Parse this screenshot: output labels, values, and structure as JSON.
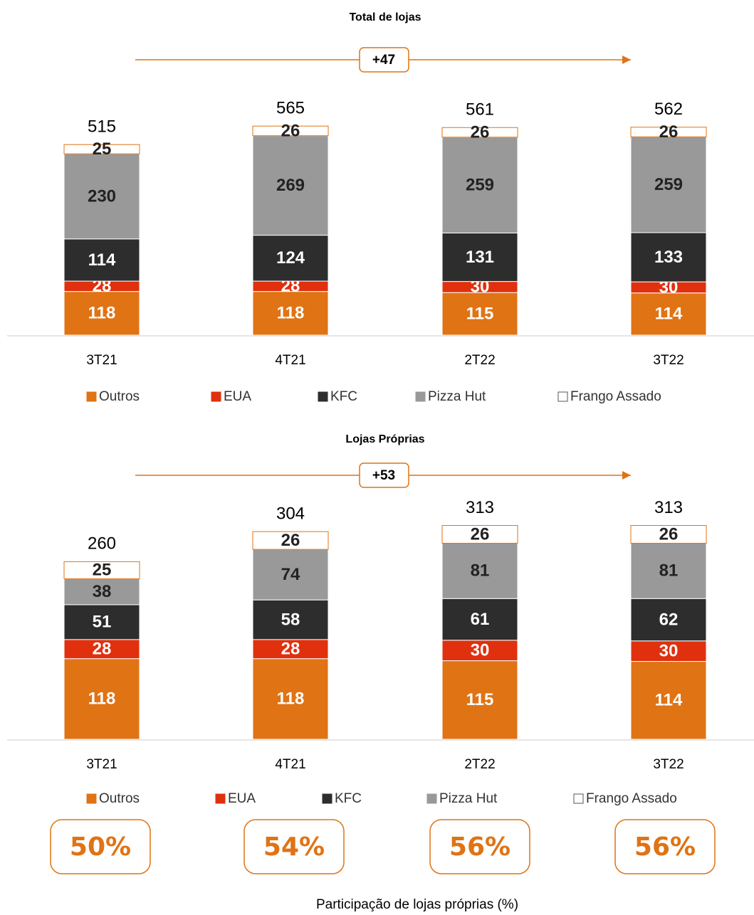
{
  "chart_data": [
    {
      "type": "stacked_bar",
      "title": "Total de lojas",
      "annotation": "+47",
      "categories": [
        "3T21",
        "4T21",
        "2T22",
        "3T22"
      ],
      "ylim": [
        0,
        600
      ],
      "totals": [
        515,
        565,
        561,
        562
      ],
      "series": [
        {
          "name": "Outros",
          "color": "#e07314",
          "values": [
            118,
            118,
            115,
            114
          ]
        },
        {
          "name": "EUA",
          "color": "#e0300e",
          "values": [
            28,
            28,
            30,
            30
          ]
        },
        {
          "name": "KFC",
          "color": "#2d2d2d",
          "values": [
            114,
            124,
            131,
            133
          ]
        },
        {
          "name": "Pizza Hut",
          "color": "#999999",
          "values": [
            230,
            269,
            259,
            259
          ]
        },
        {
          "name": "Frango Assado",
          "color": "#ffffff",
          "values": [
            25,
            26,
            26,
            26
          ]
        }
      ]
    },
    {
      "type": "stacked_bar",
      "title": "Lojas Próprias",
      "annotation": "+53",
      "categories": [
        "3T21",
        "4T21",
        "2T22",
        "3T22"
      ],
      "ylim": [
        0,
        350
      ],
      "totals": [
        260,
        304,
        313,
        313
      ],
      "series": [
        {
          "name": "Outros",
          "color": "#e07314",
          "values": [
            118,
            118,
            115,
            114
          ]
        },
        {
          "name": "EUA",
          "color": "#e0300e",
          "values": [
            28,
            28,
            30,
            30
          ]
        },
        {
          "name": "KFC",
          "color": "#2d2d2d",
          "values": [
            51,
            58,
            61,
            62
          ]
        },
        {
          "name": "Pizza Hut",
          "color": "#999999",
          "values": [
            38,
            74,
            81,
            81
          ]
        },
        {
          "name": "Frango Assado",
          "color": "#ffffff",
          "values": [
            25,
            26,
            26,
            26
          ]
        }
      ]
    }
  ],
  "ownership_share": {
    "caption": "Participação de lojas próprias (%)",
    "color": "#e07314",
    "values": [
      50,
      54,
      56,
      56
    ],
    "value_labels": [
      "50%",
      "54%",
      "56%",
      "56%"
    ]
  }
}
